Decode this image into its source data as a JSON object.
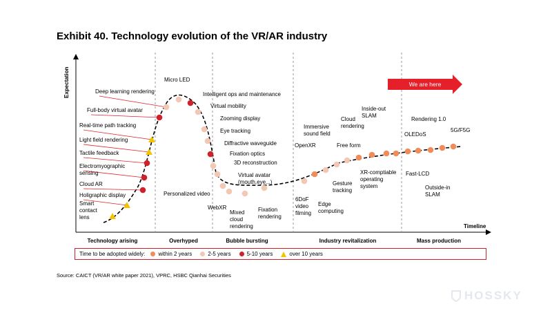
{
  "title": "Exhibit 40. Technology evolution of the VR/AR industry",
  "axis": {
    "y_label": "Expectation",
    "x_label": "Timeline"
  },
  "colors": {
    "within_2_years": "#f08c5a",
    "years_2_5": "#f2c7b4",
    "years_5_10": "#d0202a",
    "over_10_years": "#f2c300",
    "divider": "#999999",
    "banner": "#e5202a"
  },
  "banner": {
    "label": "We are here"
  },
  "phases": [
    "Technology arising",
    "Overhyped",
    "Bubble bursting",
    "Industry revitalization",
    "Mass production"
  ],
  "items": [
    {
      "text": "Smart contact lens",
      "lines": [
        "Smart",
        "contact",
        "lens"
      ],
      "status": "over_10_years"
    },
    {
      "text": "Holigraphic display",
      "lines": [
        "Holigraphic display"
      ],
      "status": "over_10_years"
    },
    {
      "text": "Cloud AR",
      "lines": [
        "Cloud AR"
      ],
      "status": "5_10_years"
    },
    {
      "text": "Electromyographic sensing",
      "lines": [
        "Electromyographic",
        "sensing"
      ],
      "status": "5_10_years"
    },
    {
      "text": "Tactile feedback",
      "lines": [
        "Tactile feedback"
      ],
      "status": "5_10_years"
    },
    {
      "text": "Light field rendering",
      "lines": [
        "Light field rendering"
      ],
      "status": "over_10_years"
    },
    {
      "text": "Real-time path tracking",
      "lines": [
        "Real-time path tracking"
      ],
      "status": "over_10_years"
    },
    {
      "text": "Full-body virtual avatar",
      "lines": [
        "Full-body virtual avatar"
      ],
      "status": "5_10_years"
    },
    {
      "text": "Deep learning rendering",
      "lines": [
        "Deep learning rendering"
      ],
      "status": "2_5_years"
    },
    {
      "text": "Micro LED",
      "lines": [
        "Micro LED"
      ],
      "status": "2_5_years"
    },
    {
      "text": "Intelligent ops and maintenance",
      "lines": [
        "Intelligent ops and maintenance"
      ],
      "status": "5_10_years"
    },
    {
      "text": "Virtual mobility",
      "lines": [
        "Virtual mobility"
      ],
      "status": "2_5_years"
    },
    {
      "text": "Zooming display",
      "lines": [
        "Zooming display"
      ],
      "status": "2_5_years"
    },
    {
      "text": "Eye tracking",
      "lines": [
        "Eye tracking"
      ],
      "status": "2_5_years"
    },
    {
      "text": "Diffractive waveguide",
      "lines": [
        "Diffractive waveguide"
      ],
      "status": "5_10_years"
    },
    {
      "text": "Fixation optics",
      "lines": [
        "Fixation optics"
      ],
      "status": "2_5_years"
    },
    {
      "text": "3D reconstruction",
      "lines": [
        "3D reconstruction"
      ],
      "status": "2_5_years"
    },
    {
      "text": "Virtual avatar (mouth,eye...)",
      "lines": [
        "Virtual avatar",
        "(mouth,eye...)"
      ],
      "status": "2_5_years"
    },
    {
      "text": "Personalized video",
      "lines": [
        "Personalized video"
      ],
      "status": "2_5_years"
    },
    {
      "text": "WebXR",
      "lines": [
        "WebXR"
      ],
      "status": "2_5_years"
    },
    {
      "text": "Mixed cloud rendering",
      "lines": [
        "Mixed",
        "cloud",
        "rendering"
      ],
      "status": "2_5_years"
    },
    {
      "text": "Fixation rendering",
      "lines": [
        "Fixation",
        "rendering"
      ],
      "status": "2_5_years"
    },
    {
      "text": "6DoF video filming",
      "lines": [
        "6DoF",
        "video",
        "filming"
      ],
      "status": "2_5_years"
    },
    {
      "text": "OpenXR",
      "lines": [
        "OpenXR"
      ],
      "status": "within_2_years"
    },
    {
      "text": "Edge computing",
      "lines": [
        "Edge",
        "computing"
      ],
      "status": "2_5_years"
    },
    {
      "text": "Immersive sound field",
      "lines": [
        "Immersive",
        "sound field"
      ],
      "status": "2_5_years"
    },
    {
      "text": "Gesture tracking",
      "lines": [
        "Gesture",
        "tracking"
      ],
      "status": "2_5_years"
    },
    {
      "text": "Free form",
      "lines": [
        "Free form"
      ],
      "status": "within_2_years"
    },
    {
      "text": "Cloud rendering",
      "lines": [
        "Cloud",
        "rendering"
      ],
      "status": "within_2_years"
    },
    {
      "text": "Inside-out SLAM",
      "lines": [
        "Inside-out",
        "SLAM"
      ],
      "status": "within_2_years"
    },
    {
      "text": "XR-comptiable operating system",
      "lines": [
        "XR-comptiable",
        "operating",
        "system"
      ],
      "status": "within_2_years"
    },
    {
      "text": "OLEDoS",
      "lines": [
        "OLEDoS"
      ],
      "status": "within_2_years"
    },
    {
      "text": "Fast-LCD",
      "lines": [
        "Fast-LCD"
      ],
      "status": "within_2_years"
    },
    {
      "text": "Rendering 1.0",
      "lines": [
        "Rendering 1.0"
      ],
      "status": "within_2_years"
    },
    {
      "text": "Outside-in SLAM",
      "lines": [
        "Outside-in",
        "SLAM"
      ],
      "status": "within_2_years"
    },
    {
      "text": "5G/F5G",
      "lines": [
        "5G/F5G"
      ],
      "status": "within_2_years"
    }
  ],
  "legend": {
    "lead": "Time to be adopted widely:",
    "entries": [
      {
        "label": "within 2 years",
        "status": "within_2_years"
      },
      {
        "label": "2-5 years",
        "status": "2_5_years"
      },
      {
        "label": "5-10 years",
        "status": "5_10_years"
      },
      {
        "label": "over 10 years",
        "status": "over_10_years"
      }
    ]
  },
  "source": "Source: CAICT (VR/AR white paper 2021), VPRC, HSBC Qianhai Securities",
  "watermark": "HOSSKY"
}
